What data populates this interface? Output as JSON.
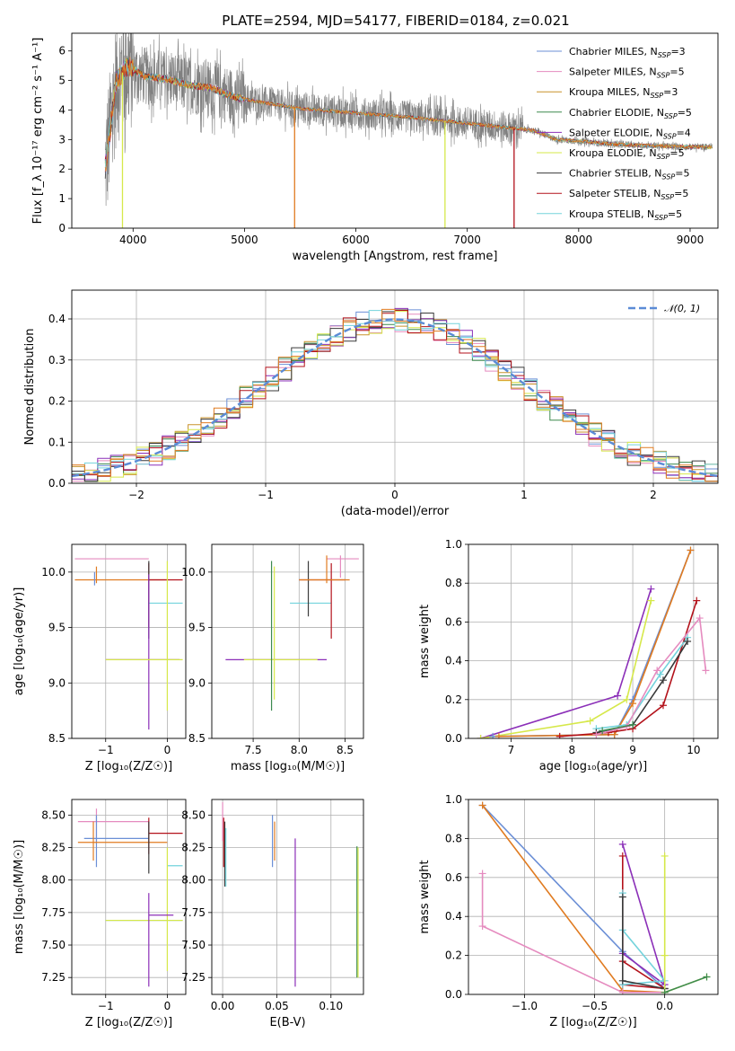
{
  "figure": {
    "title": "PLATE=2594, MJD=54177, FIBERID=0184, z=0.021"
  },
  "colors": {
    "Chabrier MILES": "#6b8fd6",
    "Salpeter MILES": "#e58bbf",
    "Kroupa MILES": "#c8922a",
    "Chabrier ELODIE": "#3d8a4f",
    "Salpeter ELODIE": "#8b2fb8",
    "Kroupa ELODIE": "#d6e84a",
    "Chabrier STELIB": "#3a3a3a",
    "Salpeter STELIB": "#b3121b",
    "Kroupa STELIB": "#73d3dc",
    "data": "#808080",
    "orange": "#e07b20",
    "normal": "#5b8bd6"
  },
  "chart_data": [
    {
      "id": "spectrum",
      "type": "line",
      "xlabel": "wavelength [Angstrom, rest frame]",
      "ylabel": "Flux [f_λ 10⁻¹⁷ erg cm⁻² s⁻¹ A⁻¹]",
      "xlim": [
        3450,
        9250
      ],
      "ylim": [
        0,
        6.6
      ],
      "xticks": [
        4000,
        5000,
        6000,
        7000,
        8000,
        9000
      ],
      "yticks": [
        0,
        1,
        2,
        3,
        4,
        5,
        6
      ],
      "legend_position": "top-right",
      "legend": [
        "Chabrier MILES, N_SSP=3",
        "Salpeter MILES, N_SSP=5",
        "Kroupa MILES, N_SSP=3",
        "Chabrier ELODIE, N_SSP=5",
        "Salpeter ELODIE, N_SSP=4",
        "Kroupa ELODIE, N_SSP=5",
        "Chabrier STELIB, N_SSP=5",
        "Salpeter STELIB, N_SSP=5",
        "Kroupa STELIB, N_SSP=5"
      ],
      "continuum": [
        [
          3750,
          2.0
        ],
        [
          3850,
          5.0
        ],
        [
          3950,
          5.5
        ],
        [
          4100,
          5.15
        ],
        [
          4300,
          5.05
        ],
        [
          4500,
          4.85
        ],
        [
          4700,
          4.75
        ],
        [
          4900,
          4.45
        ],
        [
          5100,
          4.3
        ],
        [
          5500,
          4.05
        ],
        [
          6000,
          3.9
        ],
        [
          6500,
          3.75
        ],
        [
          7000,
          3.55
        ],
        [
          7500,
          3.35
        ],
        [
          7600,
          3.3
        ],
        [
          7800,
          3.0
        ],
        [
          8000,
          2.95
        ],
        [
          8300,
          2.85
        ],
        [
          8600,
          2.8
        ],
        [
          9000,
          2.75
        ],
        [
          9200,
          2.75
        ]
      ],
      "data_range": [
        3750,
        9200
      ],
      "model_dips": [
        {
          "series": "Kroupa MILES",
          "x": 5450,
          "y": 0
        },
        {
          "series": "Kroupa ELODIE",
          "x": 6800,
          "y": 0
        },
        {
          "series": "Salpeter STELIB",
          "x": 7420,
          "y": 0
        },
        {
          "series": "Kroupa ELODIE",
          "x": 3905,
          "y": 0
        }
      ]
    },
    {
      "id": "residuals",
      "type": "step",
      "xlabel": "(data-model)/error",
      "ylabel": "Normed distribution",
      "xlim": [
        -2.5,
        2.5
      ],
      "ylim": [
        0,
        0.47
      ],
      "xticks": [
        -2,
        -1,
        0,
        1,
        2
      ],
      "yticks": [
        0,
        0.1,
        0.2,
        0.3,
        0.4
      ],
      "legend": [
        "𝒩(0, 1)"
      ],
      "bin_width": 0.1
    },
    {
      "id": "age_vs_Z",
      "type": "errorbar",
      "xlabel": "Z [log₁₀(Z/Z☉)]",
      "ylabel": "age  [log₁₀(age/yr)]",
      "xlim": [
        -1.55,
        0.3
      ],
      "ylim": [
        8.5,
        10.25
      ],
      "xticks": [
        -1,
        0
      ],
      "yticks": [
        8.5,
        9.0,
        9.5,
        10.0
      ],
      "points": [
        {
          "c": "Salpeter MILES",
          "x": -1.15,
          "xl": -1.5,
          "xh": -0.3,
          "y": 10.12,
          "yl": 10.12,
          "yh": 10.12
        },
        {
          "c": "orange",
          "x": -1.15,
          "xl": -1.5,
          "xh": 0.0,
          "y": 9.93,
          "yl": 9.9,
          "yh": 10.05
        },
        {
          "c": "Chabrier MILES",
          "x": -1.18,
          "xl": -1.18,
          "xh": -1.18,
          "y": 9.95,
          "yl": 9.88,
          "yh": 10.0
        },
        {
          "c": "Salpeter STELIB",
          "x": -0.3,
          "xl": -0.3,
          "xh": 0.25,
          "y": 9.93,
          "yl": 9.5,
          "yh": 10.08
        },
        {
          "c": "Chabrier STELIB",
          "x": -0.3,
          "xl": -0.3,
          "xh": -0.3,
          "y": 9.9,
          "yl": 9.4,
          "yh": 10.1
        },
        {
          "c": "Kroupa STELIB",
          "x": -0.3,
          "xl": -0.3,
          "xh": 0.25,
          "y": 9.72,
          "yl": 9.72,
          "yh": 9.72
        },
        {
          "c": "Salpeter ELODIE",
          "x": -0.3,
          "xl": -1.0,
          "xh": 0.2,
          "y": 9.21,
          "yl": 8.58,
          "yh": 9.98
        },
        {
          "c": "Kroupa ELODIE",
          "x": -0.3,
          "xl": -1.0,
          "xh": 0.25,
          "y": 9.21,
          "yl": 9.21,
          "yh": 9.21
        },
        {
          "c": "Kroupa ELODIE",
          "x": 0.0,
          "xl": 0.0,
          "xh": 0.0,
          "y": 9.5,
          "yl": 8.75,
          "yh": 10.1
        }
      ]
    },
    {
      "id": "age_vs_mass",
      "type": "errorbar",
      "xlabel": "mass [log₁₀(M/M☉)]",
      "xlim": [
        7.05,
        8.7
      ],
      "ylim": [
        8.5,
        10.25
      ],
      "xticks": [
        7.5,
        8.0,
        8.5
      ],
      "yticks": [
        8.5,
        9.0,
        9.5,
        10.0
      ],
      "points": [
        {
          "c": "Salpeter ELODIE",
          "x": 7.7,
          "xl": 7.2,
          "xh": 8.3,
          "y": 9.21,
          "yl": 9.21,
          "yh": 9.21
        },
        {
          "c": "Kroupa ELODIE",
          "x": 7.7,
          "xl": 7.4,
          "xh": 8.2,
          "y": 9.21,
          "yl": 9.21,
          "yh": 9.21
        },
        {
          "c": "Chabrier ELODIE",
          "x": 7.7,
          "xl": 7.7,
          "xh": 7.7,
          "y": 9.4,
          "yl": 8.75,
          "yh": 10.1
        },
        {
          "c": "Kroupa ELODIE",
          "x": 7.73,
          "xl": 7.73,
          "xh": 7.73,
          "y": 9.4,
          "yl": 8.85,
          "yh": 10.05
        },
        {
          "c": "Kroupa STELIB",
          "x": 8.1,
          "xl": 7.9,
          "xh": 8.35,
          "y": 9.72,
          "yl": 9.72,
          "yh": 9.72
        },
        {
          "c": "Salpeter STELIB",
          "x": 8.35,
          "xl": 8.0,
          "xh": 8.5,
          "y": 9.93,
          "yl": 9.4,
          "yh": 10.08
        },
        {
          "c": "Chabrier STELIB",
          "x": 8.1,
          "xl": 8.1,
          "xh": 8.1,
          "y": 9.9,
          "yl": 9.6,
          "yh": 10.1
        },
        {
          "c": "Salpeter MILES",
          "x": 8.45,
          "xl": 8.3,
          "xh": 8.65,
          "y": 10.12,
          "yl": 9.95,
          "yh": 10.15
        },
        {
          "c": "orange",
          "x": 8.3,
          "xl": 8.0,
          "xh": 8.55,
          "y": 9.93,
          "yl": 9.9,
          "yh": 10.15
        }
      ]
    },
    {
      "id": "massweight_vs_age",
      "type": "line",
      "xlabel": "age  [log₁₀(age/yr)]",
      "ylabel": "mass weight",
      "xlim": [
        6.3,
        10.4
      ],
      "ylim": [
        0,
        1.0
      ],
      "xticks": [
        7,
        8,
        9,
        10
      ],
      "yticks": [
        0,
        0.2,
        0.4,
        0.6,
        0.8,
        1.0
      ],
      "series": [
        {
          "name": "Salpeter ELODIE",
          "x": [
            6.5,
            8.75,
            9.3
          ],
          "y": [
            0.0,
            0.22,
            0.77
          ]
        },
        {
          "name": "Kroupa ELODIE",
          "x": [
            6.5,
            8.3,
            8.9,
            9.3
          ],
          "y": [
            0.0,
            0.09,
            0.2,
            0.71
          ]
        },
        {
          "name": "Chabrier MILES",
          "x": [
            6.7,
            8.7,
            9.0,
            9.95
          ],
          "y": [
            0.01,
            0.02,
            0.2,
            0.97
          ]
        },
        {
          "name": "orange",
          "x": [
            6.8,
            8.7,
            9.0,
            9.95
          ],
          "y": [
            0.01,
            0.02,
            0.18,
            0.97
          ]
        },
        {
          "name": "Salpeter STELIB",
          "x": [
            7.8,
            8.6,
            9.0,
            9.5,
            10.05
          ],
          "y": [
            0.01,
            0.03,
            0.05,
            0.17,
            0.71
          ]
        },
        {
          "name": "Kroupa STELIB",
          "x": [
            8.4,
            8.9,
            9.45,
            9.9
          ],
          "y": [
            0.05,
            0.07,
            0.33,
            0.52
          ]
        },
        {
          "name": "Chabrier STELIB",
          "x": [
            8.4,
            9.0,
            9.5,
            9.9
          ],
          "y": [
            0.03,
            0.07,
            0.3,
            0.5
          ]
        },
        {
          "name": "Salpeter MILES",
          "x": [
            8.4,
            8.9,
            9.4,
            10.1,
            10.2
          ],
          "y": [
            0.02,
            0.06,
            0.35,
            0.62,
            0.35
          ]
        },
        {
          "name": "Chabrier ELODIE",
          "x": [
            8.5,
            9.0
          ],
          "y": [
            0.04,
            0.07
          ]
        }
      ]
    },
    {
      "id": "mass_vs_Z",
      "type": "errorbar",
      "xlabel": "Z [log₁₀(Z/Z☉)]",
      "ylabel": "mass [log₁₀(M/M☉)]",
      "xlim": [
        -1.55,
        0.3
      ],
      "ylim": [
        7.12,
        8.62
      ],
      "xticks": [
        -1,
        0
      ],
      "yticks": [
        7.25,
        7.5,
        7.75,
        8.0,
        8.25,
        8.5
      ],
      "points": [
        {
          "c": "Salpeter MILES",
          "x": -1.15,
          "xl": -1.45,
          "xh": -0.3,
          "y": 8.45,
          "yl": 8.3,
          "yh": 8.55
        },
        {
          "c": "Chabrier MILES",
          "x": -1.15,
          "xl": -1.35,
          "xh": -0.3,
          "y": 8.32,
          "yl": 8.1,
          "yh": 8.5
        },
        {
          "c": "orange",
          "x": -1.2,
          "xl": -1.45,
          "xh": 0.0,
          "y": 8.29,
          "yl": 8.15,
          "yh": 8.45
        },
        {
          "c": "Salpeter STELIB",
          "x": -0.3,
          "xl": -0.3,
          "xh": 0.25,
          "y": 8.36,
          "yl": 8.2,
          "yh": 8.48
        },
        {
          "c": "Chabrier STELIB",
          "x": -0.3,
          "xl": -0.3,
          "xh": -0.3,
          "y": 8.3,
          "yl": 8.05,
          "yh": 8.45
        },
        {
          "c": "Kroupa STELIB",
          "x": 0.0,
          "xl": 0.0,
          "xh": 0.25,
          "y": 8.11,
          "yl": 8.11,
          "yh": 8.11
        },
        {
          "c": "Chabrier ELODIE",
          "x": 0.0,
          "xl": -1.0,
          "xh": 0.25,
          "y": 7.69,
          "yl": 7.69,
          "yh": 7.69
        },
        {
          "c": "Kroupa ELODIE",
          "x": 0.0,
          "xl": -1.0,
          "xh": 0.25,
          "y": 7.69,
          "yl": 7.3,
          "yh": 8.25
        },
        {
          "c": "Salpeter ELODIE",
          "x": -0.3,
          "xl": -0.3,
          "xh": 0.1,
          "y": 7.73,
          "yl": 7.18,
          "yh": 7.9
        }
      ]
    },
    {
      "id": "mass_vs_ebv",
      "type": "errorbar",
      "xlabel": "E(B-V)",
      "xlim": [
        -0.01,
        0.13
      ],
      "ylim": [
        7.12,
        8.62
      ],
      "xticks": [
        0.0,
        0.05,
        0.1
      ],
      "yticks": [
        7.25,
        7.5,
        7.75,
        8.0,
        8.25,
        8.5
      ],
      "points": [
        {
          "c": "Salpeter MILES",
          "x": 0.0,
          "xl": 0.0,
          "xh": 0.0,
          "y": 8.45,
          "yl": 8.3,
          "yh": 8.6
        },
        {
          "c": "Salpeter STELIB",
          "x": 0.001,
          "xl": 0.001,
          "xh": 0.001,
          "y": 8.36,
          "yl": 8.1,
          "yh": 8.48
        },
        {
          "c": "Chabrier STELIB",
          "x": 0.002,
          "xl": 0.002,
          "xh": 0.002,
          "y": 8.3,
          "yl": 7.95,
          "yh": 8.45
        },
        {
          "c": "Kroupa STELIB",
          "x": 0.003,
          "xl": 0.003,
          "xh": 0.003,
          "y": 8.11,
          "yl": 7.95,
          "yh": 8.4
        },
        {
          "c": "Chabrier MILES",
          "x": 0.046,
          "xl": 0.046,
          "xh": 0.046,
          "y": 8.32,
          "yl": 8.1,
          "yh": 8.5
        },
        {
          "c": "orange",
          "x": 0.048,
          "xl": 0.048,
          "xh": 0.048,
          "y": 8.29,
          "yl": 8.15,
          "yh": 8.45
        },
        {
          "c": "Salpeter ELODIE",
          "x": 0.067,
          "xl": 0.067,
          "xh": 0.067,
          "y": 7.73,
          "yl": 7.18,
          "yh": 8.32
        },
        {
          "c": "Chabrier ELODIE",
          "x": 0.124,
          "xl": 0.124,
          "xh": 0.124,
          "y": 7.69,
          "yl": 7.25,
          "yh": 8.26
        },
        {
          "c": "Kroupa ELODIE",
          "x": 0.125,
          "xl": 0.125,
          "xh": 0.125,
          "y": 7.69,
          "yl": 7.25,
          "yh": 8.25
        }
      ]
    },
    {
      "id": "massweight_vs_Z",
      "type": "line",
      "xlabel": "Z [log₁₀(Z/Z☉)]",
      "ylabel": "mass weight",
      "xlim": [
        -1.4,
        0.38
      ],
      "ylim": [
        0,
        1.0
      ],
      "xticks": [
        -1.0,
        -0.5,
        0.0
      ],
      "yticks": [
        0,
        0.2,
        0.4,
        0.6,
        0.8,
        1.0
      ],
      "series": [
        {
          "name": "Chabrier MILES",
          "x": [
            -1.3,
            -0.3,
            0.0
          ],
          "y": [
            0.97,
            0.22,
            0.03
          ]
        },
        {
          "name": "orange",
          "x": [
            -1.3,
            -0.3,
            0.0
          ],
          "y": [
            0.97,
            0.02,
            0.01
          ]
        },
        {
          "name": "Salpeter MILES",
          "x": [
            -1.3,
            -1.3,
            -0.3,
            0.0
          ],
          "y": [
            0.62,
            0.35,
            0.01,
            0.01
          ]
        },
        {
          "name": "Salpeter ELODIE",
          "x": [
            -0.3,
            0.0,
            -0.3
          ],
          "y": [
            0.77,
            0.05,
            0.21
          ]
        },
        {
          "name": "Salpeter STELIB",
          "x": [
            -0.3,
            -0.3,
            0.0,
            -0.3
          ],
          "y": [
            0.71,
            0.17,
            0.03,
            0.05
          ]
        },
        {
          "name": "Kroupa STELIB",
          "x": [
            -0.3,
            -0.3,
            0.0,
            -0.3
          ],
          "y": [
            0.52,
            0.33,
            0.07,
            0.05
          ]
        },
        {
          "name": "Chabrier STELIB",
          "x": [
            -0.3,
            -0.3,
            0.0
          ],
          "y": [
            0.5,
            0.07,
            0.03
          ]
        },
        {
          "name": "Kroupa ELODIE",
          "x": [
            0.0,
            0.0,
            0.0,
            0.3
          ],
          "y": [
            0.71,
            0.2,
            0.01,
            0.09
          ]
        },
        {
          "name": "Chabrier ELODIE",
          "x": [
            0.0,
            0.3
          ],
          "y": [
            0.01,
            0.09
          ]
        }
      ]
    }
  ]
}
